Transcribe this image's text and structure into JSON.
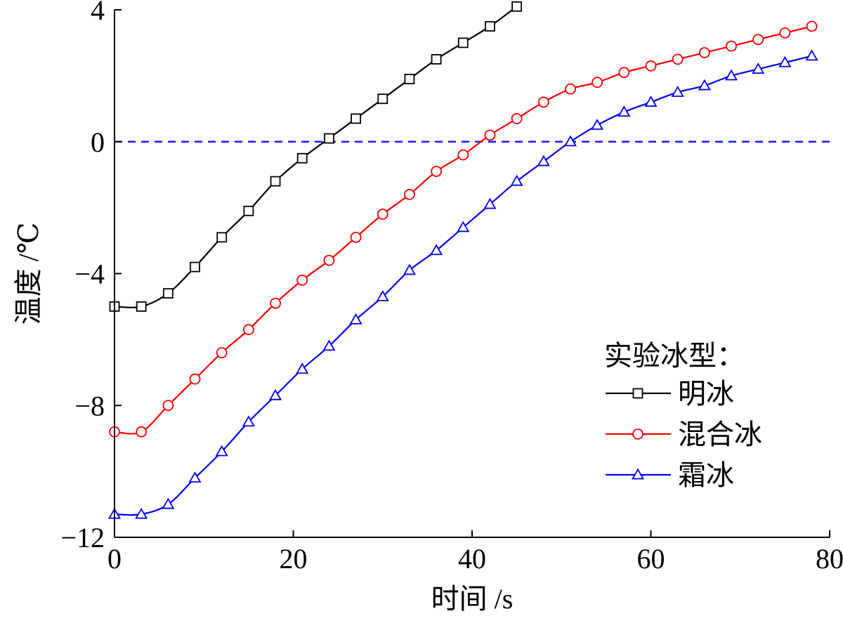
{
  "chart_data": {
    "type": "line",
    "title": "",
    "xlabel": "时间 /s",
    "ylabel": "温度 /℃",
    "xlim": [
      0,
      80
    ],
    "ylim": [
      -12,
      4
    ],
    "xticks": [
      0,
      20,
      40,
      60,
      80
    ],
    "yticks": [
      -12,
      -8,
      -4,
      0,
      4
    ],
    "xtick_labels": [
      "0",
      "20",
      "40",
      "60",
      "80"
    ],
    "ytick_labels": [
      "−12",
      "−8",
      "−4",
      "0",
      "4"
    ],
    "grid": false,
    "reference_line": {
      "y": 0,
      "style": "dashed",
      "color": "#1a1aff"
    },
    "legend": {
      "title": "实验冰型：",
      "placement": "lower-right"
    },
    "series": [
      {
        "name": "明冰",
        "color": "#000000",
        "marker": "square",
        "x": [
          0,
          3,
          6,
          9,
          12,
          15,
          18,
          21,
          24,
          27,
          30,
          33,
          36,
          39,
          42,
          45
        ],
        "y": [
          -5.0,
          -5.0,
          -4.6,
          -3.8,
          -2.9,
          -2.1,
          -1.2,
          -0.5,
          0.1,
          0.7,
          1.3,
          1.9,
          2.5,
          3.0,
          3.5,
          4.1
        ]
      },
      {
        "name": "混合冰",
        "color": "#ff0000",
        "marker": "circle",
        "x": [
          0,
          3,
          6,
          9,
          12,
          15,
          18,
          21,
          24,
          27,
          30,
          33,
          36,
          39,
          42,
          45,
          48,
          51,
          54,
          57,
          60,
          63,
          66,
          69,
          72,
          75,
          78
        ],
        "y": [
          -8.8,
          -8.8,
          -8.0,
          -7.2,
          -6.4,
          -5.7,
          -4.9,
          -4.2,
          -3.6,
          -2.9,
          -2.2,
          -1.6,
          -0.9,
          -0.4,
          0.2,
          0.7,
          1.2,
          1.6,
          1.8,
          2.1,
          2.3,
          2.5,
          2.7,
          2.9,
          3.1,
          3.3,
          3.5
        ]
      },
      {
        "name": "霜冰",
        "color": "#0000ff",
        "marker": "triangle",
        "x": [
          0,
          3,
          6,
          9,
          12,
          15,
          18,
          21,
          24,
          27,
          30,
          33,
          36,
          39,
          42,
          45,
          48,
          51,
          54,
          57,
          60,
          63,
          66,
          69,
          72,
          75,
          78
        ],
        "y": [
          -11.3,
          -11.3,
          -11.0,
          -10.2,
          -9.4,
          -8.5,
          -7.7,
          -6.9,
          -6.2,
          -5.4,
          -4.7,
          -3.9,
          -3.3,
          -2.6,
          -1.9,
          -1.2,
          -0.6,
          0.0,
          0.5,
          0.9,
          1.2,
          1.5,
          1.7,
          2.0,
          2.2,
          2.4,
          2.6
        ]
      }
    ]
  }
}
